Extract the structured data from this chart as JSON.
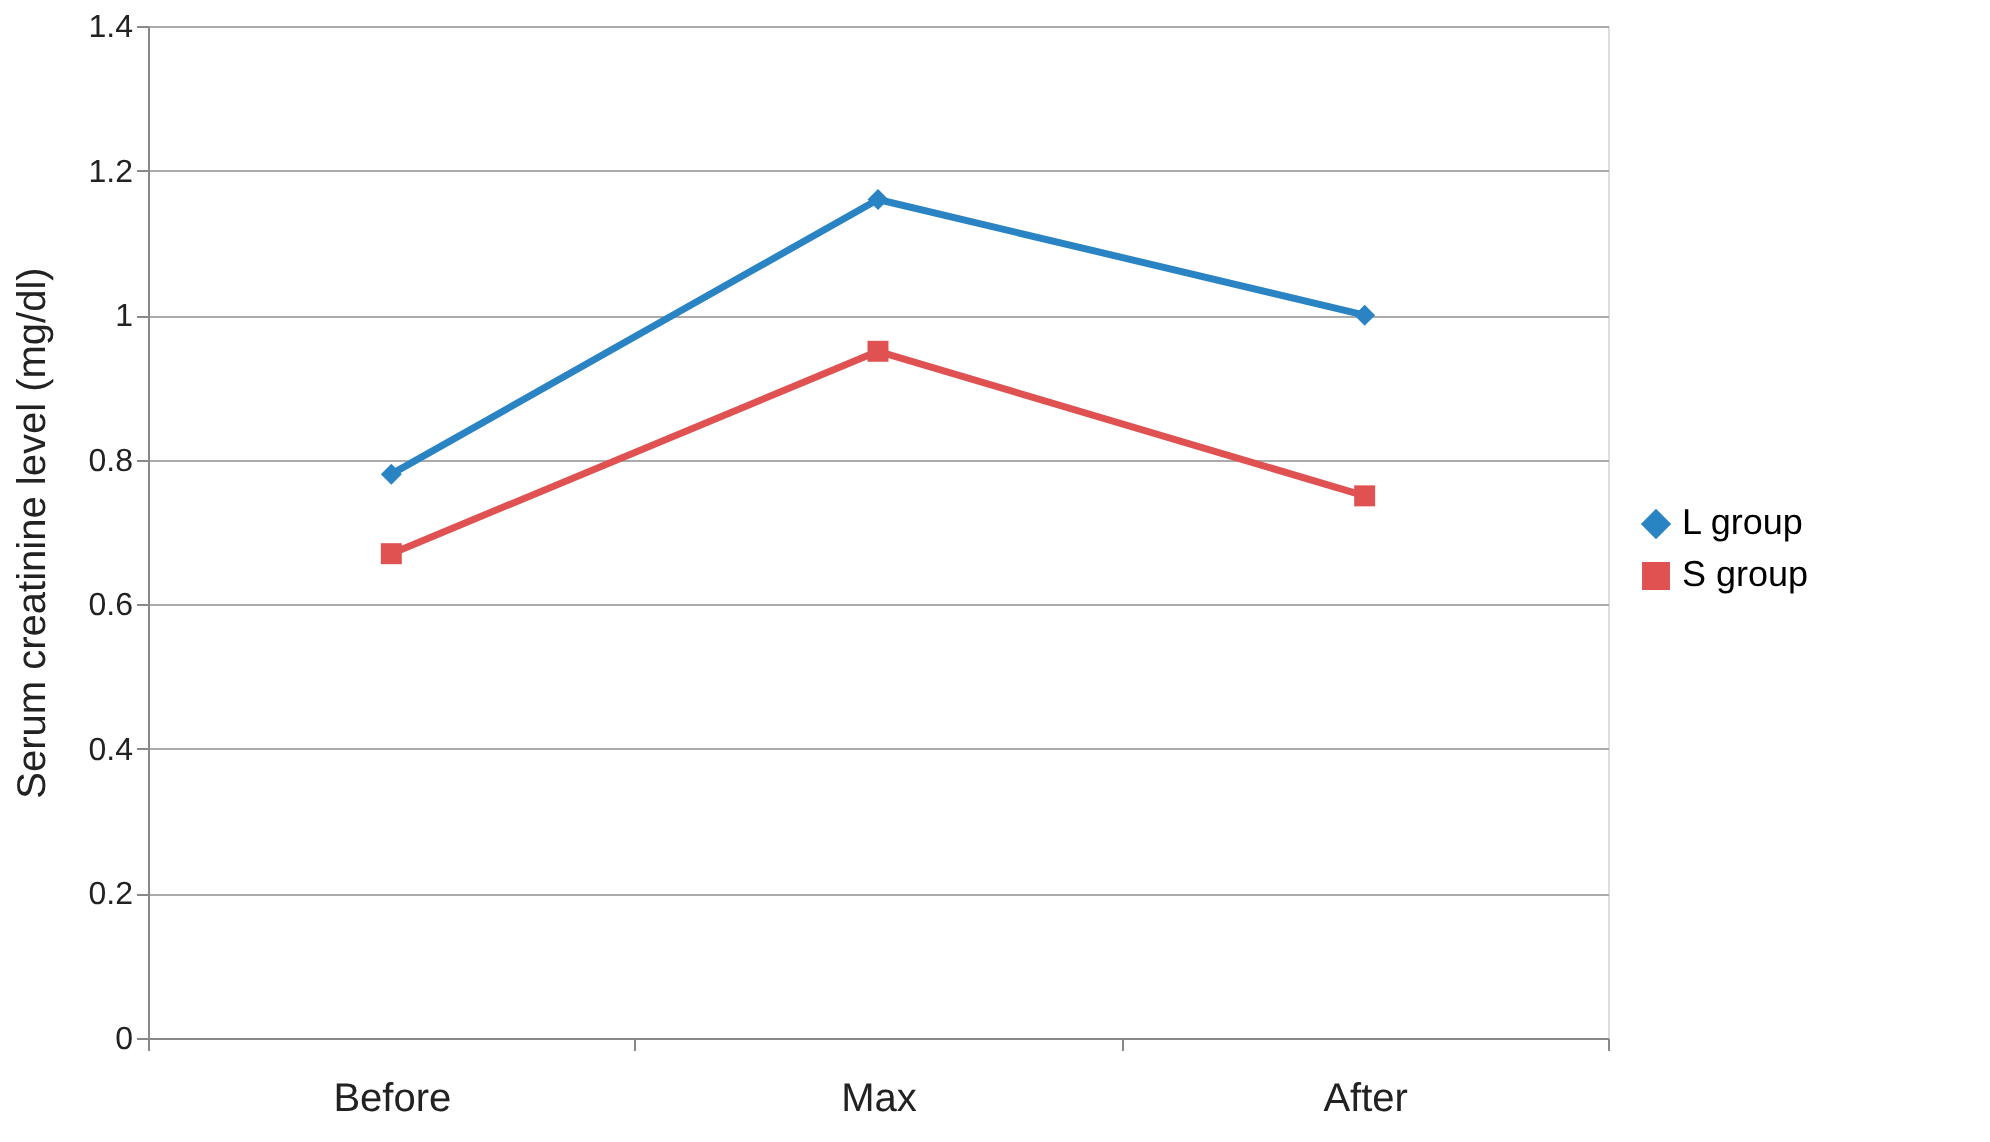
{
  "chart_data": {
    "type": "line",
    "ylabel": "Serum creatinine level (mg/dl)",
    "categories": [
      "Before",
      "Max",
      "After"
    ],
    "series": [
      {
        "name": "L group",
        "color": "#2a84c4",
        "marker": "diamond",
        "values": [
          0.78,
          1.16,
          1.0
        ]
      },
      {
        "name": "S group",
        "color": "#e05252",
        "marker": "square",
        "values": [
          0.67,
          0.95,
          0.75
        ]
      }
    ],
    "ylim": [
      0,
      1.4
    ],
    "yticks": [
      0,
      0.2,
      0.4,
      0.6,
      0.8,
      1,
      1.2,
      1.4
    ],
    "grid": "y",
    "legend": "right"
  }
}
